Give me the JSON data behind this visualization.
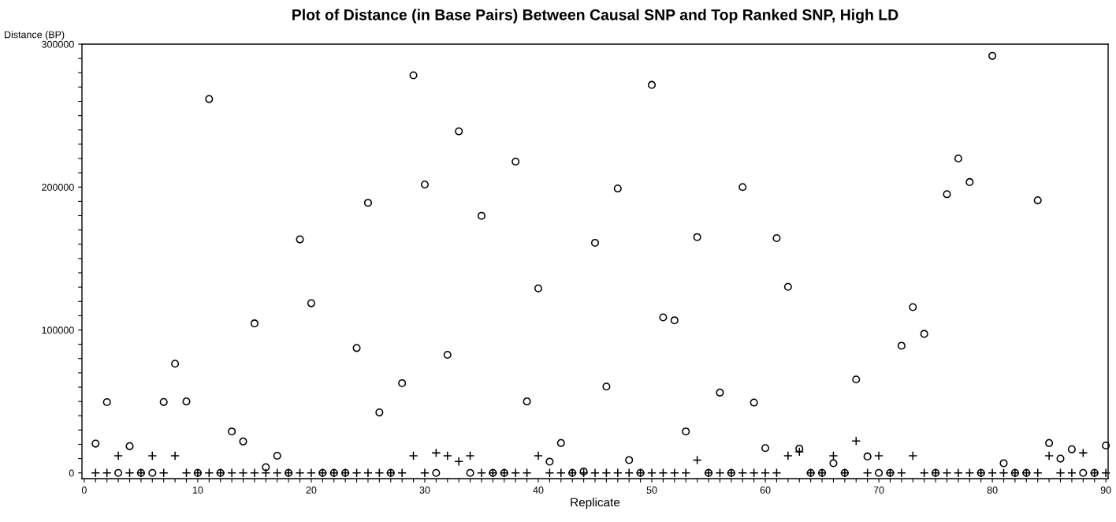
{
  "chart_data": {
    "type": "scatter",
    "title": "Plot of Distance (in Base Pairs) Between Causal SNP and Top Ranked SNP, High LD",
    "xlabel": "Replicate",
    "ylabel": "Distance (BP)",
    "x": [
      1,
      2,
      3,
      4,
      5,
      6,
      7,
      8,
      9,
      10,
      11,
      12,
      13,
      14,
      15,
      16,
      17,
      18,
      19,
      20,
      21,
      22,
      23,
      24,
      25,
      26,
      27,
      28,
      29,
      30,
      31,
      32,
      33,
      34,
      35,
      36,
      37,
      38,
      39,
      40,
      41,
      42,
      43,
      44,
      45,
      46,
      47,
      48,
      49,
      50,
      51,
      52,
      53,
      54,
      55,
      56,
      57,
      58,
      59,
      60,
      61,
      62,
      63,
      64,
      65,
      66,
      67,
      68,
      69,
      70,
      71,
      72,
      73,
      74,
      75,
      76,
      77,
      78,
      79,
      80,
      81,
      82,
      83,
      84,
      85,
      86,
      87,
      88,
      89,
      90
    ],
    "series": [
      {
        "marker": "circle",
        "color": "#000000",
        "values": [
          20500,
          49500,
          0,
          18700,
          0,
          0,
          49600,
          76400,
          50000,
          0,
          261600,
          0,
          29000,
          22000,
          104600,
          4000,
          12000,
          0,
          163400,
          118700,
          0,
          0,
          0,
          87400,
          189000,
          42300,
          0,
          62800,
          278200,
          201800,
          0,
          82600,
          239000,
          0,
          179900,
          0,
          0,
          217800,
          50000,
          129100,
          7900,
          20900,
          0,
          1000,
          161000,
          60400,
          199000,
          9000,
          0,
          271500,
          108800,
          106800,
          29000,
          165000,
          0,
          56200,
          0,
          200000,
          49200,
          17400,
          164300,
          130200,
          17000,
          0,
          0,
          6800,
          0,
          65400,
          11500,
          0,
          0,
          89000,
          116000,
          97300,
          0,
          195000,
          220000,
          203500,
          0,
          291800,
          6800,
          0,
          0,
          190700,
          20900,
          10000,
          16500,
          0,
          0,
          19200
        ]
      },
      {
        "marker": "cross",
        "color": "#000000",
        "values": [
          0,
          0,
          12000,
          0,
          0,
          12000,
          0,
          12000,
          0,
          0,
          0,
          0,
          0,
          0,
          0,
          0,
          0,
          0,
          0,
          0,
          0,
          0,
          0,
          0,
          0,
          0,
          0,
          0,
          12000,
          0,
          14000,
          12000,
          8000,
          12000,
          0,
          0,
          0,
          0,
          0,
          12000,
          0,
          0,
          0,
          0,
          0,
          0,
          0,
          0,
          0,
          0,
          0,
          0,
          0,
          9000,
          0,
          0,
          0,
          0,
          0,
          0,
          0,
          12000,
          14800,
          0,
          0,
          12000,
          0,
          22400,
          0,
          12000,
          0,
          0,
          12000,
          0,
          0,
          0,
          0,
          0,
          0,
          0,
          0,
          0,
          0,
          0,
          12000,
          0,
          0,
          14000,
          0,
          0
        ]
      }
    ],
    "xlim": [
      -0.2,
      90.2
    ],
    "ylim": [
      -4000,
      300000
    ],
    "xticks": [
      0,
      {
        "value": 1,
        "label": null
      },
      {
        "value": 2,
        "label": null
      },
      {
        "value": 3,
        "label": null
      },
      {
        "value": 4,
        "label": null
      },
      {
        "value": 5,
        "label": null
      },
      {
        "value": 6,
        "label": null
      },
      {
        "value": 7,
        "label": null
      },
      {
        "value": 8,
        "label": null
      },
      {
        "value": 9,
        "label": null
      },
      10,
      {
        "value": 11,
        "label": null
      },
      {
        "value": 12,
        "label": null
      },
      {
        "value": 13,
        "label": null
      },
      {
        "value": 14,
        "label": null
      },
      {
        "value": 15,
        "label": null
      },
      {
        "value": 16,
        "label": null
      },
      {
        "value": 17,
        "label": null
      },
      {
        "value": 18,
        "label": null
      },
      {
        "value": 19,
        "label": null
      },
      20,
      {
        "value": 21,
        "label": null
      },
      {
        "value": 22,
        "label": null
      },
      {
        "value": 23,
        "label": null
      },
      {
        "value": 24,
        "label": null
      },
      {
        "value": 25,
        "label": null
      },
      {
        "value": 26,
        "label": null
      },
      {
        "value": 27,
        "label": null
      },
      {
        "value": 28,
        "label": null
      },
      {
        "value": 29,
        "label": null
      },
      30,
      {
        "value": 31,
        "label": null
      },
      {
        "value": 32,
        "label": null
      },
      {
        "value": 33,
        "label": null
      },
      {
        "value": 34,
        "label": null
      },
      {
        "value": 35,
        "label": null
      },
      {
        "value": 36,
        "label": null
      },
      {
        "value": 37,
        "label": null
      },
      {
        "value": 38,
        "label": null
      },
      {
        "value": 39,
        "label": null
      },
      40,
      {
        "value": 41,
        "label": null
      },
      {
        "value": 42,
        "label": null
      },
      {
        "value": 43,
        "label": null
      },
      {
        "value": 44,
        "label": null
      },
      {
        "value": 45,
        "label": null
      },
      {
        "value": 46,
        "label": null
      },
      {
        "value": 47,
        "label": null
      },
      {
        "value": 48,
        "label": null
      },
      {
        "value": 49,
        "label": null
      },
      50,
      {
        "value": 51,
        "label": null
      },
      {
        "value": 52,
        "label": null
      },
      {
        "value": 53,
        "label": null
      },
      {
        "value": 54,
        "label": null
      },
      {
        "value": 55,
        "label": null
      },
      {
        "value": 56,
        "label": null
      },
      {
        "value": 57,
        "label": null
      },
      {
        "value": 58,
        "label": null
      },
      {
        "value": 59,
        "label": null
      },
      60,
      {
        "value": 61,
        "label": null
      },
      {
        "value": 62,
        "label": null
      },
      {
        "value": 63,
        "label": null
      },
      {
        "value": 64,
        "label": null
      },
      {
        "value": 65,
        "label": null
      },
      {
        "value": 66,
        "label": null
      },
      {
        "value": 67,
        "label": null
      },
      {
        "value": 68,
        "label": null
      },
      {
        "value": 69,
        "label": null
      },
      70,
      {
        "value": 71,
        "label": null
      },
      {
        "value": 72,
        "label": null
      },
      {
        "value": 73,
        "label": null
      },
      {
        "value": 74,
        "label": null
      },
      {
        "value": 75,
        "label": null
      },
      {
        "value": 76,
        "label": null
      },
      {
        "value": 77,
        "label": null
      },
      {
        "value": 78,
        "label": null
      },
      {
        "value": 79,
        "label": null
      },
      80,
      {
        "value": 81,
        "label": null
      },
      {
        "value": 82,
        "label": null
      },
      {
        "value": 83,
        "label": null
      },
      {
        "value": 84,
        "label": null
      },
      {
        "value": 85,
        "label": null
      },
      {
        "value": 86,
        "label": null
      },
      {
        "value": 87,
        "label": null
      },
      {
        "value": 88,
        "label": null
      },
      {
        "value": 89,
        "label": null
      },
      90
    ],
    "yticks": [
      0,
      {
        "value": 10000,
        "label": null
      },
      {
        "value": 20000,
        "label": null
      },
      {
        "value": 30000,
        "label": null
      },
      {
        "value": 40000,
        "label": null
      },
      {
        "value": 50000,
        "label": null
      },
      {
        "value": 60000,
        "label": null
      },
      {
        "value": 70000,
        "label": null
      },
      {
        "value": 80000,
        "label": null
      },
      {
        "value": 90000,
        "label": null
      },
      100000,
      {
        "value": 110000,
        "label": null
      },
      {
        "value": 120000,
        "label": null
      },
      {
        "value": 130000,
        "label": null
      },
      {
        "value": 140000,
        "label": null
      },
      {
        "value": 150000,
        "label": null
      },
      {
        "value": 160000,
        "label": null
      },
      {
        "value": 170000,
        "label": null
      },
      {
        "value": 180000,
        "label": null
      },
      {
        "value": 190000,
        "label": null
      },
      200000,
      {
        "value": 210000,
        "label": null
      },
      {
        "value": 220000,
        "label": null
      },
      {
        "value": 230000,
        "label": null
      },
      {
        "value": 240000,
        "label": null
      },
      {
        "value": 250000,
        "label": null
      },
      {
        "value": 260000,
        "label": null
      },
      {
        "value": 270000,
        "label": null
      },
      {
        "value": 280000,
        "label": null
      },
      {
        "value": 290000,
        "label": null
      },
      300000
    ],
    "grid": false,
    "legend": false
  }
}
